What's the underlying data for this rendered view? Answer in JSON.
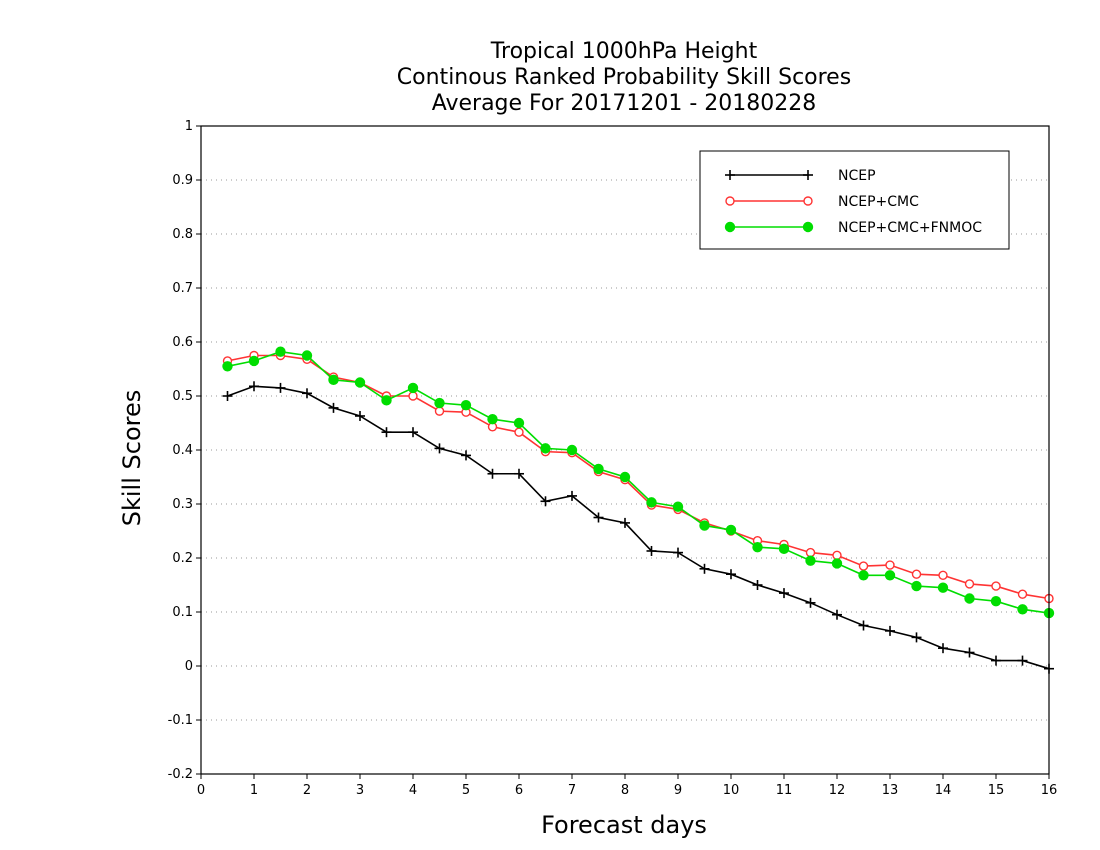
{
  "chart_data": {
    "type": "line",
    "title": [
      "Tropical 1000hPa Height",
      "Continous Ranked Probability Skill Scores",
      "Average For 20171201 - 20180228"
    ],
    "xlabel": "Forecast days",
    "ylabel": "Skill Scores",
    "xlim": [
      0,
      16
    ],
    "ylim": [
      -0.2,
      1
    ],
    "xticks": [
      0,
      1,
      2,
      3,
      4,
      5,
      6,
      7,
      8,
      9,
      10,
      11,
      12,
      13,
      14,
      15,
      16
    ],
    "yticks": [
      -0.2,
      -0.1,
      0,
      0.1,
      0.2,
      0.3,
      0.4,
      0.5,
      0.6,
      0.7,
      0.8,
      0.9,
      1
    ],
    "ytick_labels": [
      "-0.2",
      "-0.1",
      "0",
      "0.1",
      "0.2",
      "0.3",
      "0.4",
      "0.5",
      "0.6",
      "0.7",
      "0.8",
      "0.9",
      "1"
    ],
    "grid": "horizontal dotted",
    "legend_position": "top-right",
    "x": [
      0.5,
      1,
      1.5,
      2,
      2.5,
      3,
      3.5,
      4,
      4.5,
      5,
      5.5,
      6,
      6.5,
      7,
      7.5,
      8,
      8.5,
      9,
      9.5,
      10,
      10.5,
      11,
      11.5,
      12,
      12.5,
      13,
      13.5,
      14,
      14.5,
      15,
      15.5,
      16
    ],
    "series": [
      {
        "name": "NCEP",
        "color": "#000000",
        "marker": "plus",
        "values": [
          0.5,
          0.518,
          0.515,
          0.505,
          0.478,
          0.463,
          0.433,
          0.433,
          0.403,
          0.39,
          0.356,
          0.356,
          0.305,
          0.315,
          0.275,
          0.265,
          0.213,
          0.21,
          0.18,
          0.17,
          0.15,
          0.135,
          0.117,
          0.095,
          0.075,
          0.065,
          0.053,
          0.033,
          0.025,
          0.01,
          0.01,
          -0.005
        ]
      },
      {
        "name": "NCEP+CMC",
        "color": "#ff3333",
        "marker": "open-circle",
        "values": [
          0.565,
          0.575,
          0.575,
          0.568,
          0.535,
          0.525,
          0.5,
          0.5,
          0.472,
          0.47,
          0.443,
          0.433,
          0.397,
          0.395,
          0.36,
          0.345,
          0.298,
          0.29,
          0.265,
          0.25,
          0.232,
          0.225,
          0.21,
          0.205,
          0.185,
          0.187,
          0.17,
          0.168,
          0.152,
          0.148,
          0.133,
          0.125
        ]
      },
      {
        "name": "NCEP+CMC+FNMOC",
        "color": "#00dd00",
        "marker": "filled-circle",
        "values": [
          0.555,
          0.565,
          0.582,
          0.575,
          0.53,
          0.525,
          0.492,
          0.515,
          0.487,
          0.483,
          0.457,
          0.45,
          0.403,
          0.4,
          0.365,
          0.35,
          0.303,
          0.295,
          0.26,
          0.252,
          0.22,
          0.217,
          0.195,
          0.19,
          0.168,
          0.168,
          0.148,
          0.145,
          0.125,
          0.12,
          0.105,
          0.098
        ]
      }
    ]
  }
}
